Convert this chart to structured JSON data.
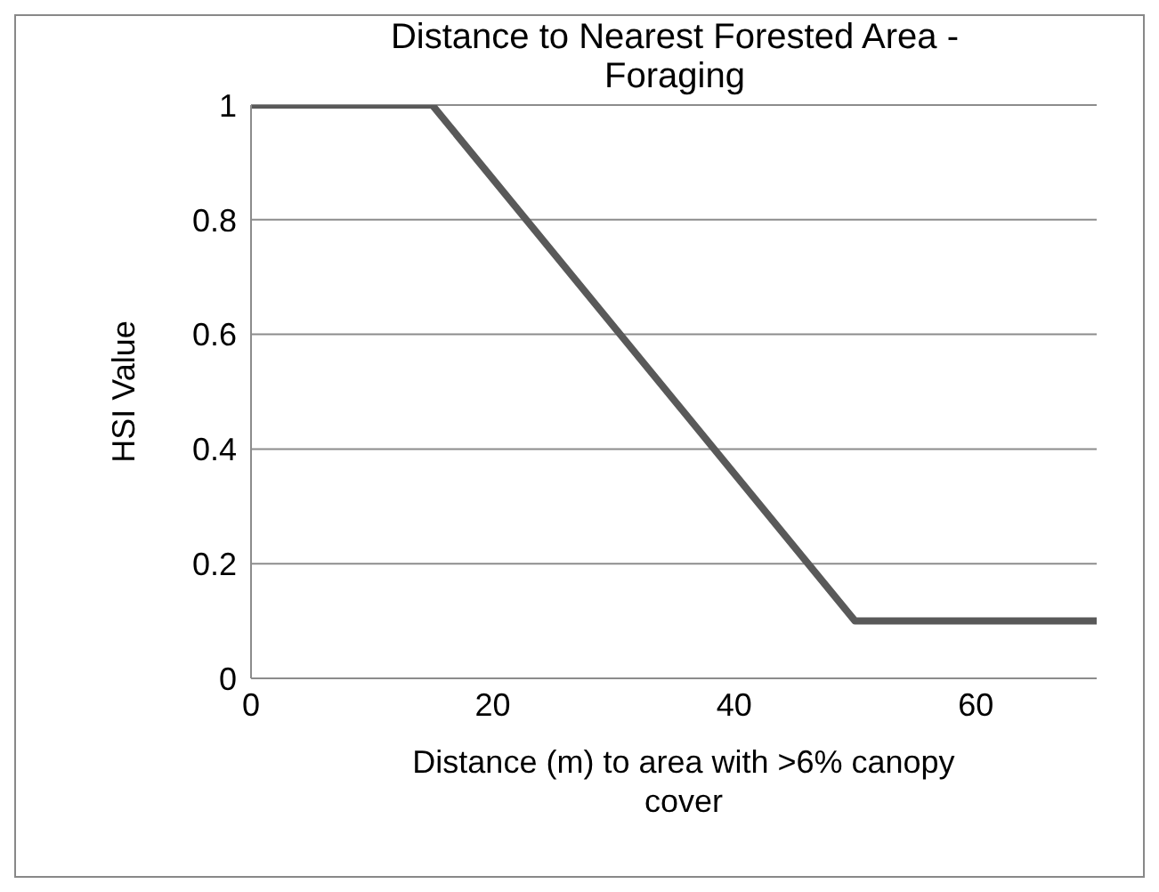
{
  "chart_data": {
    "type": "line",
    "title": "Distance to Nearest Forested Area - Foraging",
    "xlabel": "Distance (m) to area with >6% canopy cover",
    "ylabel": "HSI Value",
    "x": [
      0,
      15,
      50,
      70
    ],
    "series": [
      {
        "color": "#595959",
        "values": [
          1,
          1,
          0.1,
          0.1
        ]
      }
    ],
    "xlim": [
      0,
      70
    ],
    "xticks": [
      0,
      20,
      40,
      60
    ],
    "ylim": [
      0,
      1
    ],
    "yticks": [
      0,
      0.2,
      0.4,
      0.6,
      0.8,
      1
    ],
    "grid": "y",
    "legend": false,
    "marker": "none",
    "line_style": "solid"
  }
}
